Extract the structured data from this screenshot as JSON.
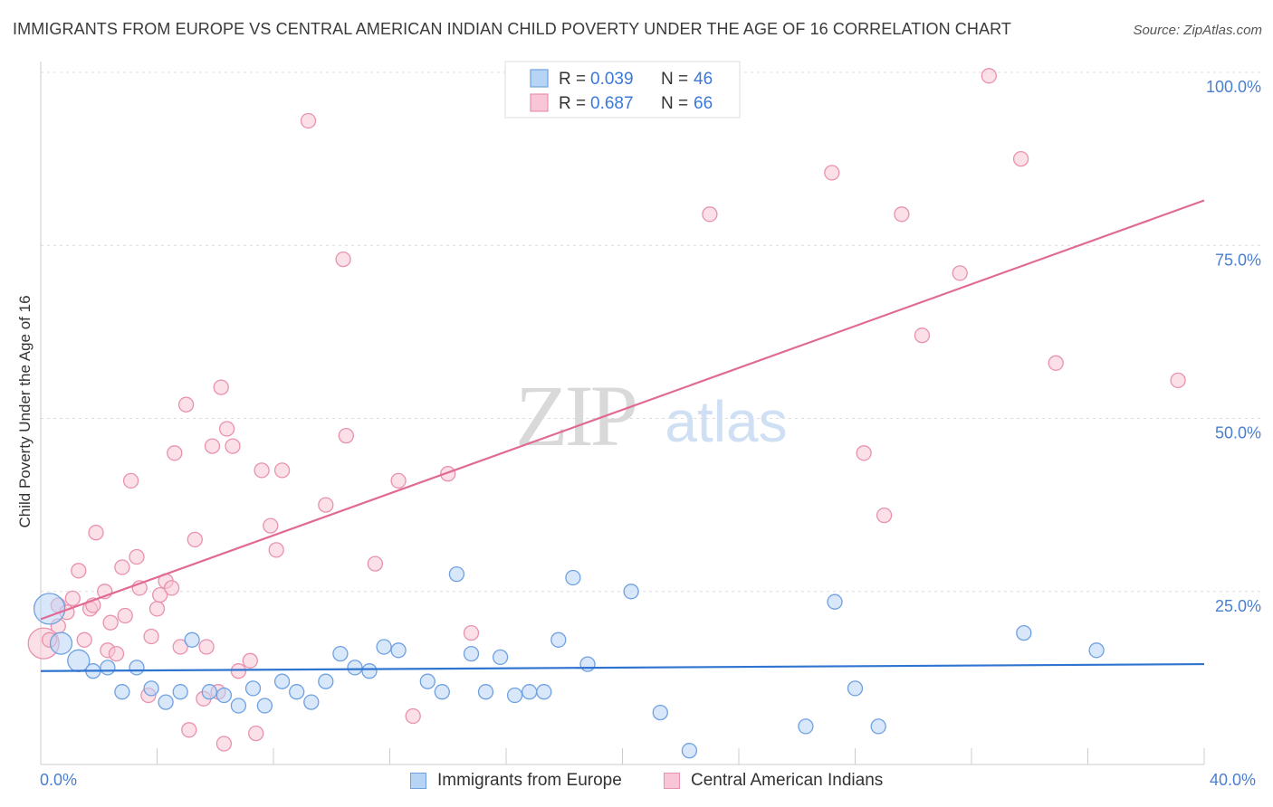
{
  "header": {
    "title": "IMMIGRANTS FROM EUROPE VS CENTRAL AMERICAN INDIAN CHILD POVERTY UNDER THE AGE OF 16 CORRELATION CHART",
    "source": "Source: ZipAtlas.com"
  },
  "watermark": {
    "zip": "ZIP",
    "atlas": "atlas"
  },
  "colors": {
    "blue_fill": "#b8d4f5",
    "blue_stroke": "#6fa1e0",
    "blue_line": "#2f74d0",
    "pink_fill": "#f8c6d6",
    "pink_stroke": "#e892ae",
    "pink_line": "#e06a94",
    "tick_text": "#4a7fd0"
  },
  "legend": {
    "entries": [
      {
        "r_label": "R = ",
        "r_value": "0.039",
        "n_label": "N = ",
        "n_value": "46"
      },
      {
        "r_label": "R = ",
        "r_value": "0.687",
        "n_label": "N = ",
        "n_value": "66"
      }
    ]
  },
  "bottom_legend": {
    "series_a": "Immigrants from Europe",
    "series_b": "Central American Indians"
  },
  "axes": {
    "x_min_label": "0.0%",
    "x_max_label": "40.0%",
    "y_tick_labels": [
      "100.0%",
      "75.0%",
      "50.0%",
      "25.0%"
    ]
  },
  "chart_data": {
    "type": "scatter",
    "title": "IMMIGRANTS FROM EUROPE VS CENTRAL AMERICAN INDIAN CHILD POVERTY UNDER THE AGE OF 16 CORRELATION CHART",
    "xlabel": "",
    "ylabel": "Child Poverty Under the Age of 16",
    "xlim": [
      0,
      40
    ],
    "ylim": [
      0,
      100
    ],
    "y_ticks": [
      25,
      50,
      75,
      100
    ],
    "x_ticks": [
      0,
      4,
      8,
      12,
      16,
      20,
      24,
      28,
      32,
      36,
      40
    ],
    "grid": "horizontal dashed",
    "legend_position": "top-center",
    "series": [
      {
        "name": "Immigrants from Europe",
        "r": 0.039,
        "n": 46,
        "trend": {
          "x": [
            0,
            40
          ],
          "y": [
            13.5,
            14.5
          ]
        },
        "points": [
          {
            "x": 0.3,
            "y": 22.5,
            "s": "xl"
          },
          {
            "x": 0.7,
            "y": 17.5,
            "s": "l"
          },
          {
            "x": 1.3,
            "y": 15,
            "s": "l"
          },
          {
            "x": 1.8,
            "y": 13.5,
            "s": "m"
          },
          {
            "x": 2.3,
            "y": 14,
            "s": "m"
          },
          {
            "x": 2.8,
            "y": 10.5,
            "s": "m"
          },
          {
            "x": 3.3,
            "y": 14,
            "s": "m"
          },
          {
            "x": 3.8,
            "y": 11,
            "s": "m"
          },
          {
            "x": 4.3,
            "y": 9,
            "s": "m"
          },
          {
            "x": 4.8,
            "y": 10.5,
            "s": "m"
          },
          {
            "x": 5.2,
            "y": 18,
            "s": "m"
          },
          {
            "x": 5.8,
            "y": 10.5,
            "s": "m"
          },
          {
            "x": 6.3,
            "y": 10,
            "s": "m"
          },
          {
            "x": 6.8,
            "y": 8.5,
            "s": "m"
          },
          {
            "x": 7.3,
            "y": 11,
            "s": "m"
          },
          {
            "x": 7.7,
            "y": 8.5,
            "s": "m"
          },
          {
            "x": 8.3,
            "y": 12,
            "s": "m"
          },
          {
            "x": 8.8,
            "y": 10.5,
            "s": "m"
          },
          {
            "x": 9.3,
            "y": 9,
            "s": "m"
          },
          {
            "x": 9.8,
            "y": 12,
            "s": "m"
          },
          {
            "x": 10.3,
            "y": 16,
            "s": "m"
          },
          {
            "x": 10.8,
            "y": 14,
            "s": "m"
          },
          {
            "x": 11.3,
            "y": 13.5,
            "s": "m"
          },
          {
            "x": 11.8,
            "y": 17,
            "s": "m"
          },
          {
            "x": 12.3,
            "y": 16.5,
            "s": "m"
          },
          {
            "x": 13.3,
            "y": 12,
            "s": "m"
          },
          {
            "x": 13.8,
            "y": 10.5,
            "s": "m"
          },
          {
            "x": 14.3,
            "y": 27.5,
            "s": "m"
          },
          {
            "x": 14.8,
            "y": 16,
            "s": "m"
          },
          {
            "x": 15.3,
            "y": 10.5,
            "s": "m"
          },
          {
            "x": 15.8,
            "y": 15.5,
            "s": "m"
          },
          {
            "x": 16.3,
            "y": 10,
            "s": "m"
          },
          {
            "x": 16.8,
            "y": 10.5,
            "s": "m"
          },
          {
            "x": 17.3,
            "y": 10.5,
            "s": "m"
          },
          {
            "x": 17.8,
            "y": 18,
            "s": "m"
          },
          {
            "x": 18.3,
            "y": 27,
            "s": "m"
          },
          {
            "x": 18.8,
            "y": 14.5,
            "s": "m"
          },
          {
            "x": 20.3,
            "y": 25,
            "s": "m"
          },
          {
            "x": 21.3,
            "y": 7.5,
            "s": "m"
          },
          {
            "x": 22.3,
            "y": 2,
            "s": "m"
          },
          {
            "x": 26.3,
            "y": 5.5,
            "s": "m"
          },
          {
            "x": 27.3,
            "y": 23.5,
            "s": "m"
          },
          {
            "x": 28.0,
            "y": 11,
            "s": "m"
          },
          {
            "x": 28.8,
            "y": 5.5,
            "s": "m"
          },
          {
            "x": 33.8,
            "y": 19,
            "s": "m"
          },
          {
            "x": 36.3,
            "y": 16.5,
            "s": "m"
          }
        ]
      },
      {
        "name": "Central American Indians",
        "r": 0.687,
        "n": 66,
        "trend": {
          "x": [
            0,
            40
          ],
          "y": [
            21,
            81.5
          ]
        },
        "points": [
          {
            "x": 0.1,
            "y": 17.5,
            "s": "xl"
          },
          {
            "x": 0.3,
            "y": 18,
            "s": "m"
          },
          {
            "x": 0.6,
            "y": 20,
            "s": "m"
          },
          {
            "x": 0.6,
            "y": 23,
            "s": "m"
          },
          {
            "x": 0.9,
            "y": 22,
            "s": "m"
          },
          {
            "x": 1.1,
            "y": 24,
            "s": "m"
          },
          {
            "x": 1.3,
            "y": 28,
            "s": "m"
          },
          {
            "x": 1.5,
            "y": 18,
            "s": "m"
          },
          {
            "x": 1.7,
            "y": 22.5,
            "s": "m"
          },
          {
            "x": 1.8,
            "y": 23,
            "s": "m"
          },
          {
            "x": 1.9,
            "y": 33.5,
            "s": "m"
          },
          {
            "x": 2.2,
            "y": 25,
            "s": "m"
          },
          {
            "x": 2.3,
            "y": 16.5,
            "s": "m"
          },
          {
            "x": 2.4,
            "y": 20.5,
            "s": "m"
          },
          {
            "x": 2.6,
            "y": 16,
            "s": "m"
          },
          {
            "x": 2.8,
            "y": 28.5,
            "s": "m"
          },
          {
            "x": 2.9,
            "y": 21.5,
            "s": "m"
          },
          {
            "x": 3.1,
            "y": 41,
            "s": "m"
          },
          {
            "x": 3.3,
            "y": 30,
            "s": "m"
          },
          {
            "x": 3.4,
            "y": 25.5,
            "s": "m"
          },
          {
            "x": 3.7,
            "y": 10,
            "s": "m"
          },
          {
            "x": 3.8,
            "y": 18.5,
            "s": "m"
          },
          {
            "x": 4.0,
            "y": 22.5,
            "s": "m"
          },
          {
            "x": 4.1,
            "y": 24.5,
            "s": "m"
          },
          {
            "x": 4.3,
            "y": 26.5,
            "s": "m"
          },
          {
            "x": 4.5,
            "y": 25.5,
            "s": "m"
          },
          {
            "x": 4.6,
            "y": 45,
            "s": "m"
          },
          {
            "x": 4.8,
            "y": 17,
            "s": "m"
          },
          {
            "x": 5.0,
            "y": 52,
            "s": "m"
          },
          {
            "x": 5.1,
            "y": 5,
            "s": "m"
          },
          {
            "x": 5.3,
            "y": 32.5,
            "s": "m"
          },
          {
            "x": 5.6,
            "y": 9.5,
            "s": "m"
          },
          {
            "x": 5.7,
            "y": 17,
            "s": "m"
          },
          {
            "x": 5.9,
            "y": 46,
            "s": "m"
          },
          {
            "x": 6.1,
            "y": 10.5,
            "s": "m"
          },
          {
            "x": 6.2,
            "y": 54.5,
            "s": "m"
          },
          {
            "x": 6.3,
            "y": 3,
            "s": "m"
          },
          {
            "x": 6.4,
            "y": 48.5,
            "s": "m"
          },
          {
            "x": 6.6,
            "y": 46,
            "s": "m"
          },
          {
            "x": 6.8,
            "y": 13.5,
            "s": "m"
          },
          {
            "x": 7.2,
            "y": 15,
            "s": "m"
          },
          {
            "x": 7.4,
            "y": 4.5,
            "s": "m"
          },
          {
            "x": 7.6,
            "y": 42.5,
            "s": "m"
          },
          {
            "x": 7.9,
            "y": 34.5,
            "s": "m"
          },
          {
            "x": 8.1,
            "y": 31,
            "s": "m"
          },
          {
            "x": 8.3,
            "y": 42.5,
            "s": "m"
          },
          {
            "x": 9.2,
            "y": 93,
            "s": "m"
          },
          {
            "x": 9.8,
            "y": 37.5,
            "s": "m"
          },
          {
            "x": 10.4,
            "y": 73,
            "s": "m"
          },
          {
            "x": 10.5,
            "y": 47.5,
            "s": "m"
          },
          {
            "x": 11.5,
            "y": 29,
            "s": "m"
          },
          {
            "x": 12.3,
            "y": 41,
            "s": "m"
          },
          {
            "x": 12.8,
            "y": 7,
            "s": "m"
          },
          {
            "x": 14.0,
            "y": 42,
            "s": "m"
          },
          {
            "x": 14.8,
            "y": 19,
            "s": "m"
          },
          {
            "x": 23.0,
            "y": 79.5,
            "s": "m"
          },
          {
            "x": 27.2,
            "y": 85.5,
            "s": "m"
          },
          {
            "x": 28.3,
            "y": 45,
            "s": "m"
          },
          {
            "x": 29.0,
            "y": 36,
            "s": "m"
          },
          {
            "x": 29.6,
            "y": 79.5,
            "s": "m"
          },
          {
            "x": 30.3,
            "y": 62,
            "s": "m"
          },
          {
            "x": 31.6,
            "y": 71,
            "s": "m"
          },
          {
            "x": 32.6,
            "y": 99.5,
            "s": "m"
          },
          {
            "x": 33.7,
            "y": 87.5,
            "s": "m"
          },
          {
            "x": 34.9,
            "y": 58,
            "s": "m"
          },
          {
            "x": 39.1,
            "y": 55.5,
            "s": "m"
          }
        ]
      }
    ]
  }
}
